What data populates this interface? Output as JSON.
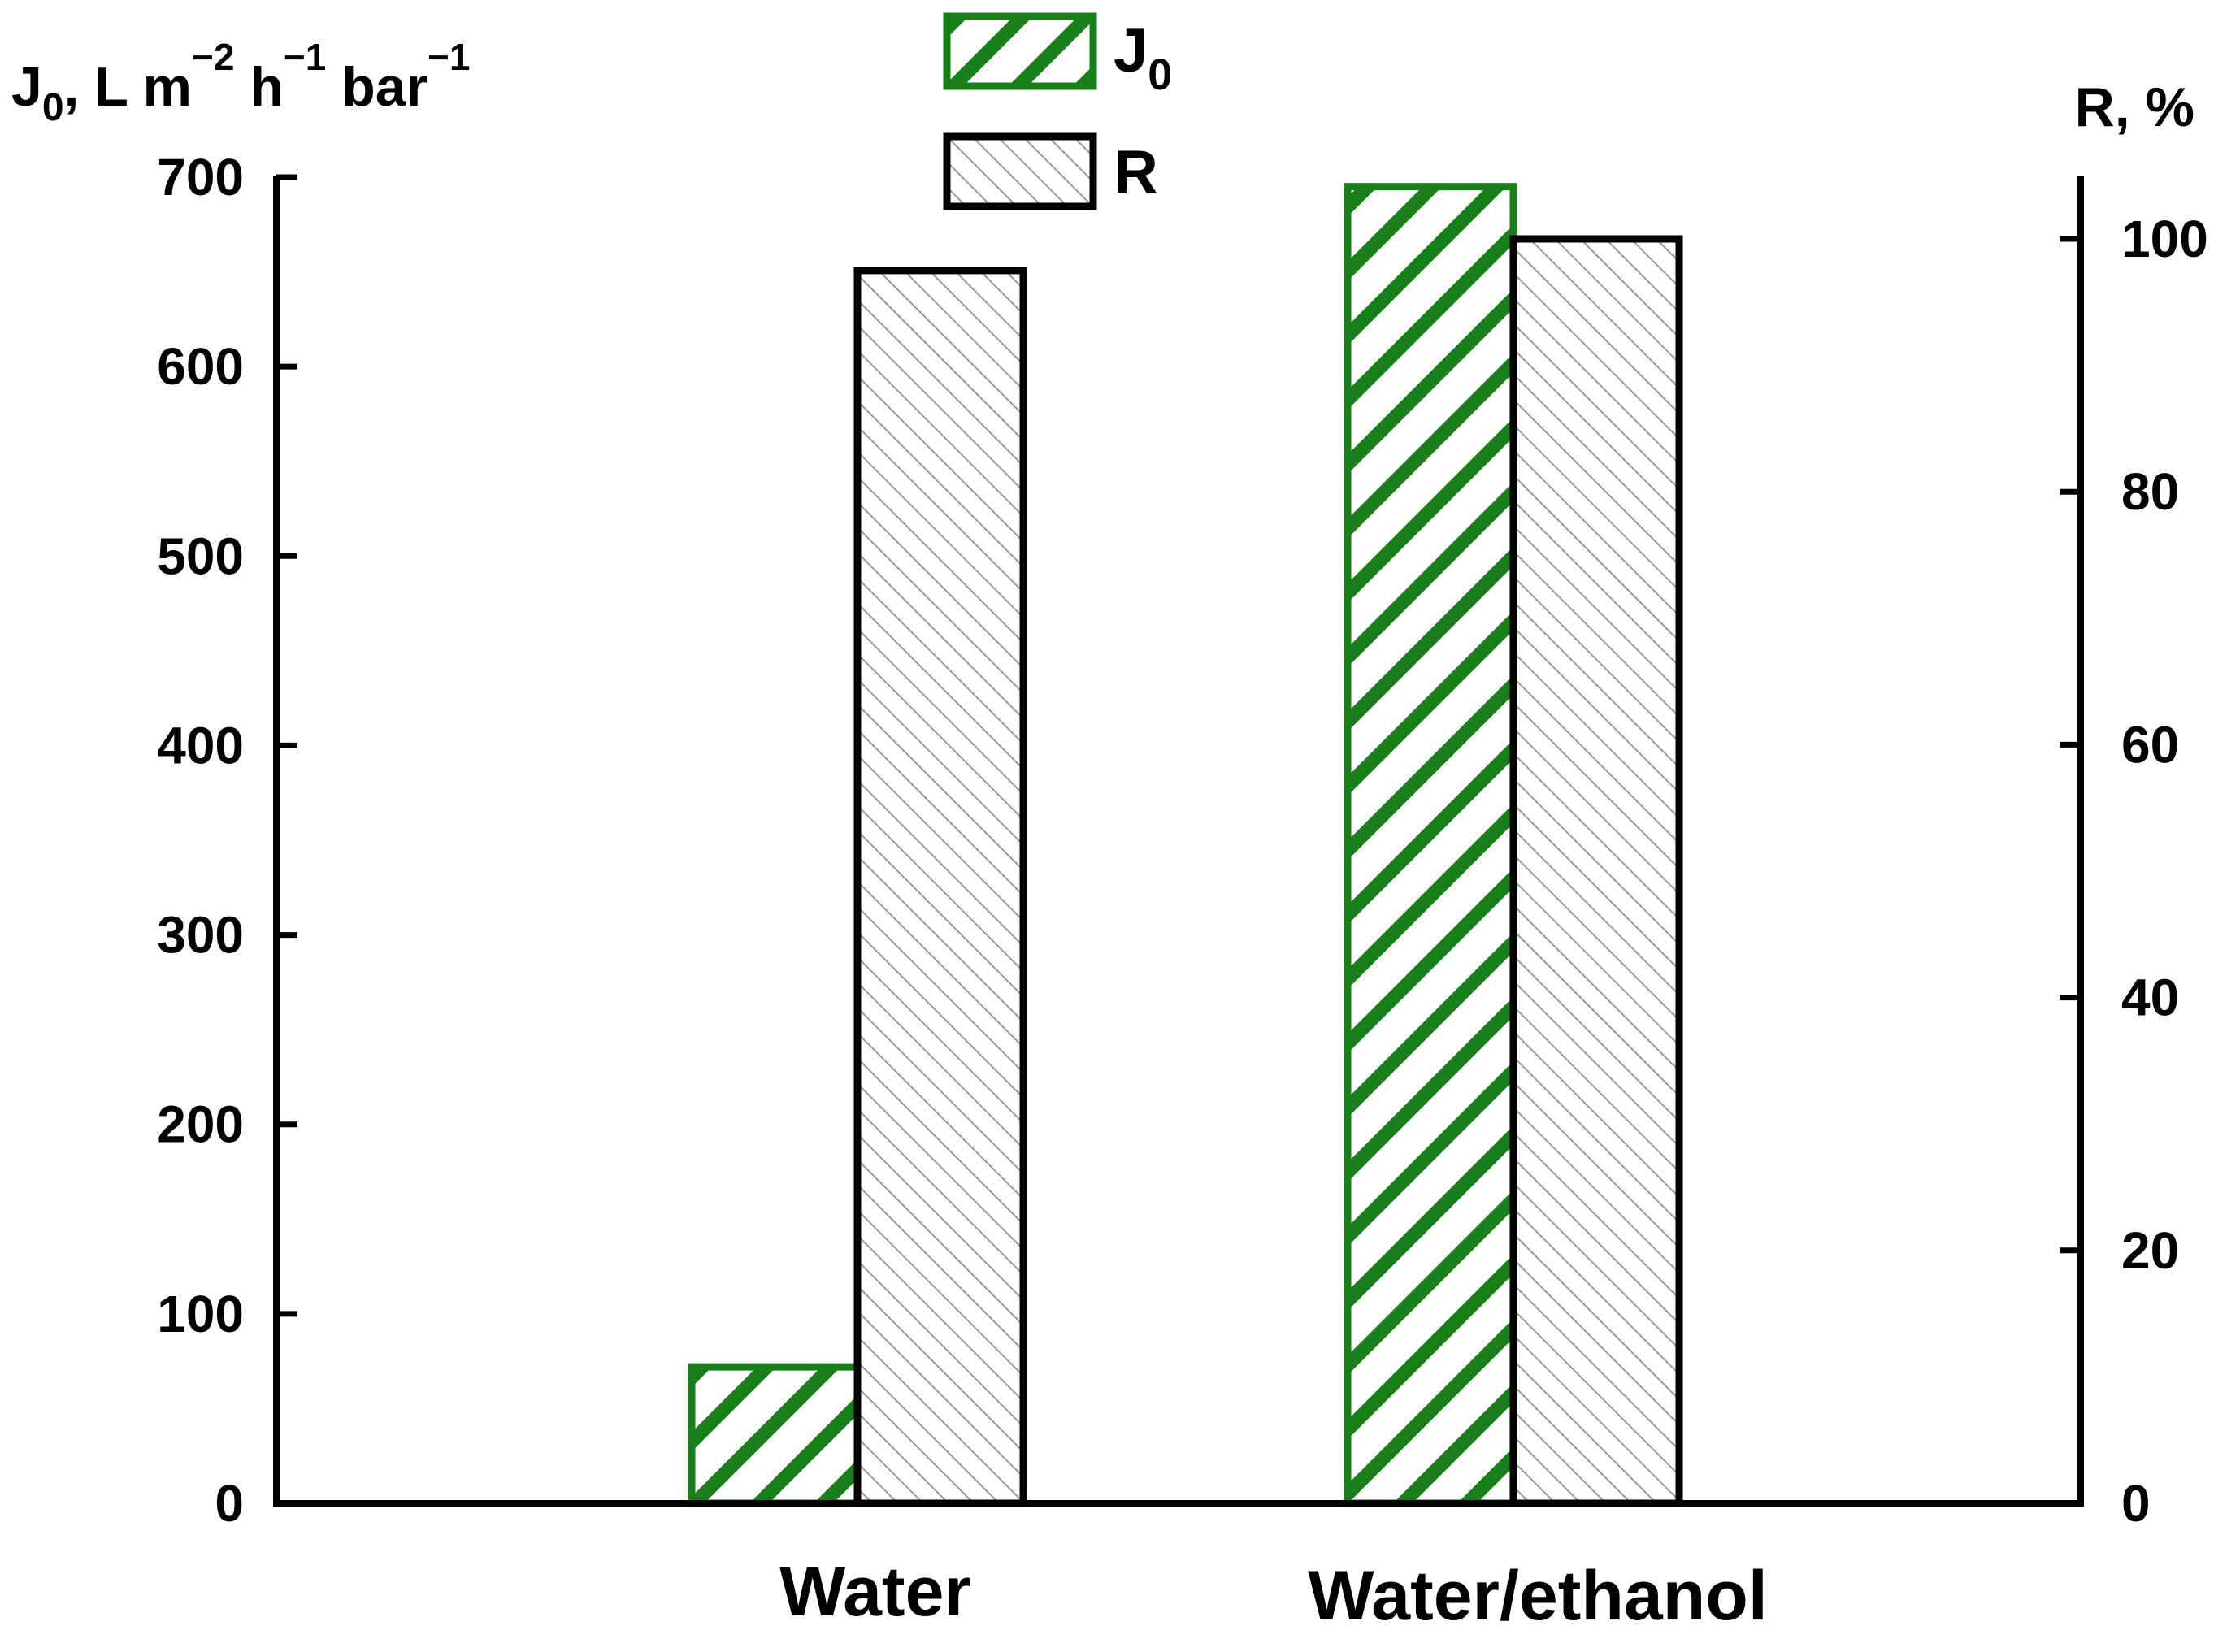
{
  "chart_data": {
    "type": "bar",
    "categories": [
      "Water",
      "Water/ethanol"
    ],
    "series": [
      {
        "name": "J0",
        "axis": "left",
        "values": [
          72,
          695
        ],
        "color": "#1a7f1a",
        "pattern": "dense-hatch"
      },
      {
        "name": "R",
        "axis": "right",
        "values": [
          97.5,
          100
        ],
        "color": "#000000",
        "pattern": "light-hatch"
      }
    ],
    "left_axis": {
      "title_main": "J",
      "title_sub": "0",
      "title_part": ", L m",
      "title_sup1": "−2",
      "title_h": " h",
      "title_sup2": "−1",
      "title_bar": " bar",
      "title_sup3": "−1",
      "ylim": [
        0,
        700
      ],
      "ticks": [
        0,
        100,
        200,
        300,
        400,
        500,
        600,
        700
      ],
      "tick_labels": [
        "0",
        "100",
        "200",
        "300",
        "400",
        "500",
        "600",
        "700"
      ]
    },
    "right_axis": {
      "title": "R, %",
      "ylim": [
        0,
        105
      ],
      "ticks": [
        0,
        20,
        40,
        60,
        80,
        100
      ],
      "tick_labels": [
        "0",
        "20",
        "40",
        "60",
        "80",
        "100"
      ]
    },
    "legend": {
      "placement": "top-center",
      "items": [
        {
          "main": "J",
          "sub": "0"
        },
        {
          "main": "R",
          "sub": ""
        }
      ]
    },
    "grid": false
  }
}
